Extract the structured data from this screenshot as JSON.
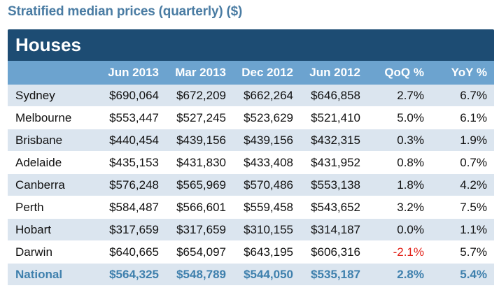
{
  "page_title": "Stratified median prices (quarterly) ($)",
  "chart_data": {
    "type": "table",
    "title": "Stratified median prices (quarterly) ($)",
    "section": "Houses",
    "columns": [
      "",
      "Jun 2013",
      "Mar 2013",
      "Dec 2012",
      "Jun 2012",
      "QoQ %",
      "YoY %"
    ],
    "rows": [
      {
        "name": "Sydney",
        "values": [
          "$690,064",
          "$672,209",
          "$662,264",
          "$646,858",
          "2.7%",
          "6.7%"
        ]
      },
      {
        "name": "Melbourne",
        "values": [
          "$553,447",
          "$527,245",
          "$523,629",
          "$521,410",
          "5.0%",
          "6.1%"
        ]
      },
      {
        "name": "Brisbane",
        "values": [
          "$440,454",
          "$439,156",
          "$439,156",
          "$432,315",
          "0.3%",
          "1.9%"
        ]
      },
      {
        "name": "Adelaide",
        "values": [
          "$435,153",
          "$431,830",
          "$433,408",
          "$431,952",
          "0.8%",
          "0.7%"
        ]
      },
      {
        "name": "Canberra",
        "values": [
          "$576,248",
          "$565,969",
          "$570,486",
          "$553,138",
          "1.8%",
          "4.2%"
        ]
      },
      {
        "name": "Perth",
        "values": [
          "$584,487",
          "$566,601",
          "$559,458",
          "$543,652",
          "3.2%",
          "7.5%"
        ]
      },
      {
        "name": "Hobart",
        "values": [
          "$317,659",
          "$317,659",
          "$310,155",
          "$314,187",
          "0.0%",
          "1.1%"
        ]
      },
      {
        "name": "Darwin",
        "values": [
          "$640,665",
          "$654,097",
          "$643,195",
          "$606,316",
          "-2.1%",
          "5.7%"
        ]
      },
      {
        "name": "National",
        "values": [
          "$564,325",
          "$548,789",
          "$544,050",
          "$535,187",
          "2.8%",
          "5.4%"
        ]
      }
    ],
    "colors": {
      "title": "#4a7ca3",
      "header_band": "#1d4c73",
      "column_header": "#6ca3cf",
      "stripe": "#dbe5ef",
      "national": "#3f80ad",
      "negative": "#e2231a"
    }
  }
}
